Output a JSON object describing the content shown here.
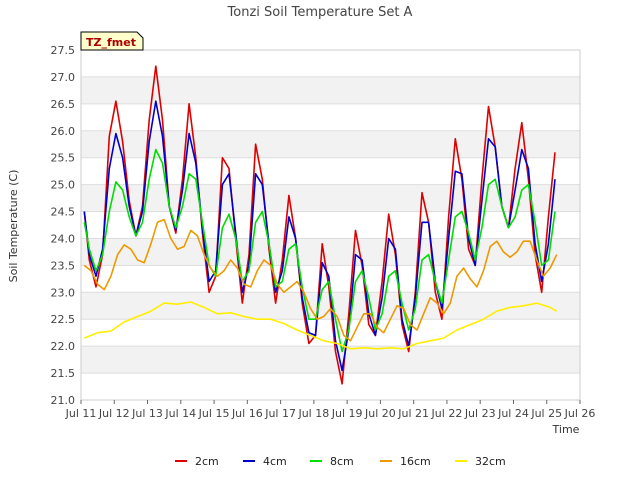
{
  "chart_data": {
    "type": "line",
    "title": "Tonzi Soil Temperature Set A",
    "xlabel": "Time",
    "ylabel": "Soil Temperature (C)",
    "badge": "TZ_fmet",
    "xlim": [
      11,
      26
    ],
    "ylim": [
      21.0,
      27.5
    ],
    "x_ticks": [
      11,
      12,
      13,
      14,
      15,
      16,
      17,
      18,
      19,
      20,
      21,
      22,
      23,
      24,
      25,
      26
    ],
    "x_tick_labels": [
      "Jul 11",
      "Jul 12",
      "Jul 13",
      "Jul 14",
      "Jul 15",
      "Jul 16",
      "Jul 17",
      "Jul 18",
      "Jul 19",
      "Jul 20",
      "Jul 21",
      "Jul 22",
      "Jul 23",
      "Jul 24",
      "Jul 25",
      "Jul 26"
    ],
    "y_ticks": [
      21.0,
      21.5,
      22.0,
      22.5,
      23.0,
      23.5,
      24.0,
      24.5,
      25.0,
      25.5,
      26.0,
      26.5,
      27.0,
      27.5
    ],
    "y_tick_labels": [
      "21.0",
      "21.5",
      "22.0",
      "22.5",
      "23.0",
      "23.5",
      "24.0",
      "24.5",
      "25.0",
      "25.5",
      "26.0",
      "26.5",
      "27.0",
      "27.5"
    ],
    "grid": true,
    "legend_position": "bottom",
    "series": [
      {
        "name": "2cm",
        "color": "#dd0000",
        "x": [
          11.1,
          11.25,
          11.45,
          11.65,
          11.85,
          12.05,
          12.25,
          12.45,
          12.65,
          12.85,
          13.05,
          13.25,
          13.45,
          13.65,
          13.85,
          14.05,
          14.25,
          14.45,
          14.65,
          14.85,
          15.05,
          15.25,
          15.45,
          15.65,
          15.85,
          16.05,
          16.25,
          16.45,
          16.65,
          16.85,
          17.05,
          17.25,
          17.45,
          17.65,
          17.85,
          18.05,
          18.25,
          18.45,
          18.65,
          18.85,
          19.05,
          19.25,
          19.45,
          19.65,
          19.85,
          20.05,
          20.25,
          20.45,
          20.65,
          20.85,
          21.05,
          21.25,
          21.45,
          21.65,
          21.85,
          22.05,
          22.25,
          22.45,
          22.65,
          22.85,
          23.05,
          23.25,
          23.45,
          23.65,
          23.85,
          24.05,
          24.25,
          24.45,
          24.65,
          24.85,
          25.05,
          25.25
        ],
        "y": [
          24.5,
          23.6,
          23.1,
          23.7,
          25.9,
          26.55,
          25.8,
          24.7,
          24.05,
          24.6,
          26.2,
          27.2,
          26.2,
          24.6,
          24.1,
          25.1,
          26.5,
          25.5,
          24.1,
          23.0,
          23.3,
          25.5,
          25.3,
          24.0,
          22.8,
          23.7,
          25.75,
          25.1,
          23.8,
          22.8,
          23.6,
          24.8,
          24.0,
          22.8,
          22.05,
          22.2,
          23.9,
          23.1,
          21.9,
          21.3,
          22.6,
          24.15,
          23.5,
          22.4,
          22.2,
          23.2,
          24.45,
          23.7,
          22.4,
          21.9,
          23.0,
          24.85,
          24.3,
          23.0,
          22.5,
          24.4,
          25.85,
          25.1,
          23.8,
          23.5,
          25.1,
          26.45,
          25.7,
          24.6,
          24.2,
          25.3,
          26.15,
          25.1,
          23.7,
          23.0,
          24.4,
          25.6
        ]
      },
      {
        "name": "4cm",
        "color": "#0000cc",
        "x": [
          11.1,
          11.25,
          11.45,
          11.65,
          11.85,
          12.05,
          12.25,
          12.45,
          12.65,
          12.85,
          13.05,
          13.25,
          13.45,
          13.65,
          13.85,
          14.05,
          14.25,
          14.45,
          14.65,
          14.85,
          15.05,
          15.25,
          15.45,
          15.65,
          15.85,
          16.05,
          16.25,
          16.45,
          16.65,
          16.85,
          17.05,
          17.25,
          17.45,
          17.65,
          17.85,
          18.05,
          18.25,
          18.45,
          18.65,
          18.85,
          19.05,
          19.25,
          19.45,
          19.65,
          19.85,
          20.05,
          20.25,
          20.45,
          20.65,
          20.85,
          21.05,
          21.25,
          21.45,
          21.65,
          21.85,
          22.05,
          22.25,
          22.45,
          22.65,
          22.85,
          23.05,
          23.25,
          23.45,
          23.65,
          23.85,
          24.05,
          24.25,
          24.45,
          24.65,
          24.85,
          25.05,
          25.25
        ],
        "y": [
          24.5,
          23.7,
          23.3,
          23.8,
          25.3,
          25.95,
          25.5,
          24.6,
          24.05,
          24.5,
          25.8,
          26.55,
          25.9,
          24.6,
          24.15,
          24.9,
          25.95,
          25.4,
          24.2,
          23.2,
          23.4,
          25.0,
          25.2,
          24.1,
          23.0,
          23.5,
          25.2,
          25.0,
          23.9,
          23.0,
          23.4,
          24.4,
          24.0,
          22.9,
          22.25,
          22.2,
          23.55,
          23.3,
          22.1,
          21.55,
          22.3,
          23.7,
          23.6,
          22.6,
          22.2,
          22.9,
          24.0,
          23.8,
          22.5,
          22.0,
          22.9,
          24.3,
          24.3,
          23.2,
          22.7,
          24.0,
          25.25,
          25.2,
          24.0,
          23.5,
          24.7,
          25.85,
          25.7,
          24.6,
          24.2,
          24.9,
          25.65,
          25.3,
          23.9,
          23.2,
          23.9,
          25.1
        ]
      },
      {
        "name": "8cm",
        "color": "#00dd00",
        "x": [
          11.1,
          11.25,
          11.45,
          11.65,
          11.85,
          12.05,
          12.25,
          12.45,
          12.65,
          12.85,
          13.05,
          13.25,
          13.45,
          13.65,
          13.85,
          14.05,
          14.25,
          14.45,
          14.65,
          14.85,
          15.05,
          15.25,
          15.45,
          15.65,
          15.85,
          16.05,
          16.25,
          16.45,
          16.65,
          16.85,
          17.05,
          17.25,
          17.45,
          17.65,
          17.85,
          18.05,
          18.25,
          18.45,
          18.65,
          18.85,
          19.05,
          19.25,
          19.45,
          19.65,
          19.85,
          20.05,
          20.25,
          20.45,
          20.65,
          20.85,
          21.05,
          21.25,
          21.45,
          21.65,
          21.85,
          22.05,
          22.25,
          22.45,
          22.65,
          22.85,
          23.05,
          23.25,
          23.45,
          23.65,
          23.85,
          24.05,
          24.25,
          24.45,
          24.65,
          24.85,
          25.05,
          25.25
        ],
        "y": [
          24.3,
          23.8,
          23.4,
          23.7,
          24.5,
          25.05,
          24.9,
          24.4,
          24.05,
          24.3,
          25.1,
          25.65,
          25.4,
          24.6,
          24.2,
          24.6,
          25.2,
          25.1,
          24.3,
          23.5,
          23.3,
          24.2,
          24.45,
          24.0,
          23.2,
          23.4,
          24.3,
          24.5,
          23.9,
          23.1,
          23.2,
          23.8,
          23.9,
          23.1,
          22.5,
          22.5,
          23.05,
          23.2,
          22.5,
          21.9,
          22.3,
          23.2,
          23.4,
          22.9,
          22.3,
          22.6,
          23.3,
          23.4,
          22.8,
          22.3,
          22.7,
          23.6,
          23.7,
          23.2,
          22.8,
          23.6,
          24.4,
          24.5,
          24.1,
          23.6,
          24.2,
          25.0,
          25.1,
          24.6,
          24.2,
          24.4,
          24.9,
          25.0,
          24.3,
          23.5,
          23.6,
          24.5
        ]
      },
      {
        "name": "16cm",
        "color": "#ee9900",
        "x": [
          11.1,
          11.3,
          11.5,
          11.7,
          11.9,
          12.1,
          12.3,
          12.5,
          12.7,
          12.9,
          13.1,
          13.3,
          13.5,
          13.7,
          13.9,
          14.1,
          14.3,
          14.5,
          14.7,
          14.9,
          15.1,
          15.3,
          15.5,
          15.7,
          15.9,
          16.1,
          16.3,
          16.5,
          16.7,
          16.9,
          17.1,
          17.3,
          17.5,
          17.7,
          17.9,
          18.1,
          18.3,
          18.5,
          18.7,
          18.9,
          19.1,
          19.3,
          19.5,
          19.7,
          19.9,
          20.1,
          20.3,
          20.5,
          20.7,
          20.9,
          21.1,
          21.3,
          21.5,
          21.7,
          21.9,
          22.1,
          22.3,
          22.5,
          22.7,
          22.9,
          23.1,
          23.3,
          23.5,
          23.7,
          23.9,
          24.1,
          24.3,
          24.5,
          24.7,
          24.9,
          25.1,
          25.3
        ],
        "y": [
          23.5,
          23.4,
          23.15,
          23.05,
          23.3,
          23.7,
          23.88,
          23.8,
          23.6,
          23.55,
          23.9,
          24.3,
          24.35,
          24.0,
          23.8,
          23.85,
          24.15,
          24.05,
          23.7,
          23.45,
          23.3,
          23.4,
          23.6,
          23.45,
          23.15,
          23.1,
          23.4,
          23.6,
          23.5,
          23.15,
          23.0,
          23.1,
          23.2,
          23.0,
          22.7,
          22.5,
          22.55,
          22.7,
          22.55,
          22.2,
          22.1,
          22.35,
          22.6,
          22.6,
          22.35,
          22.25,
          22.5,
          22.75,
          22.7,
          22.4,
          22.3,
          22.6,
          22.9,
          22.8,
          22.6,
          22.8,
          23.3,
          23.45,
          23.25,
          23.1,
          23.4,
          23.85,
          23.95,
          23.75,
          23.65,
          23.75,
          23.95,
          23.95,
          23.6,
          23.3,
          23.45,
          23.7
        ]
      },
      {
        "name": "32cm",
        "color": "#ffee00",
        "x": [
          11.1,
          11.5,
          11.9,
          12.3,
          12.7,
          13.1,
          13.5,
          13.9,
          14.3,
          14.7,
          15.1,
          15.5,
          15.9,
          16.3,
          16.7,
          17.1,
          17.5,
          17.9,
          18.3,
          18.7,
          19.1,
          19.5,
          19.9,
          20.3,
          20.7,
          21.1,
          21.5,
          21.9,
          22.3,
          22.7,
          23.1,
          23.5,
          23.9,
          24.3,
          24.7,
          25.1,
          25.3
        ],
        "y": [
          22.15,
          22.25,
          22.28,
          22.45,
          22.55,
          22.65,
          22.8,
          22.78,
          22.82,
          22.72,
          22.6,
          22.62,
          22.55,
          22.5,
          22.5,
          22.42,
          22.3,
          22.2,
          22.1,
          22.05,
          21.95,
          21.97,
          21.95,
          21.97,
          21.95,
          22.05,
          22.1,
          22.15,
          22.3,
          22.4,
          22.5,
          22.65,
          22.72,
          22.75,
          22.8,
          22.72,
          22.65
        ]
      }
    ]
  }
}
